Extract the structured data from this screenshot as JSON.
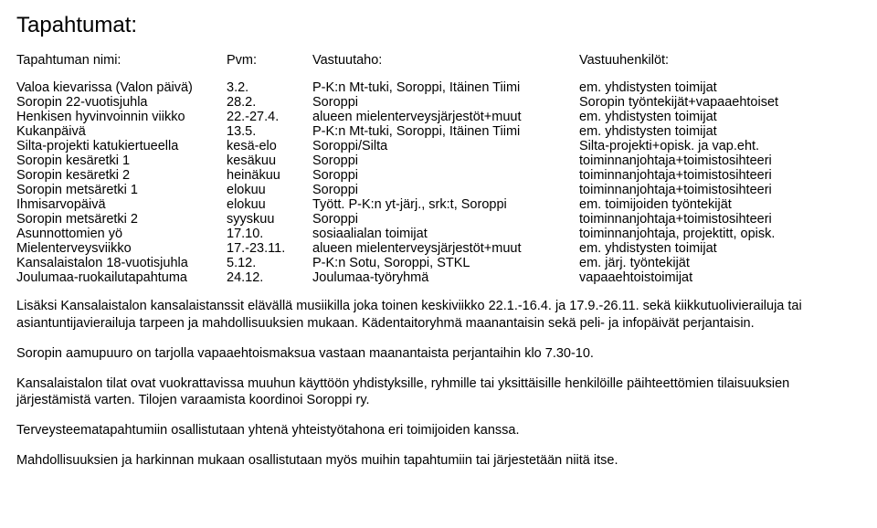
{
  "title": "Tapahtumat:",
  "headers": {
    "name": "Tapahtuman nimi:",
    "date": "Pvm:",
    "resp": "Vastuutaho:",
    "people": "Vastuuhenkilöt:"
  },
  "events": [
    {
      "name": "Valoa kievarissa (Valon päivä)",
      "date": "3.2.",
      "resp": "P-K:n Mt-tuki, Soroppi, Itäinen Tiimi",
      "people": "em. yhdistysten toimijat"
    },
    {
      "name": "Soropin 22-vuotisjuhla",
      "date": "28.2.",
      "resp": "Soroppi",
      "people": "Soropin työntekijät+vapaaehtoiset"
    },
    {
      "name": "Henkisen hyvinvoinnin viikko",
      "date": "22.-27.4.",
      "resp": "alueen mielenterveysjärjestöt+muut",
      "people": "em. yhdistysten toimijat"
    },
    {
      "name": "Kukanpäivä",
      "date": "13.5.",
      "resp": "P-K:n Mt-tuki, Soroppi, Itäinen Tiimi",
      "people": "em. yhdistysten toimijat"
    },
    {
      "name": "Silta-projekti katukiertueella",
      "date": "kesä-elo",
      "resp": "Soroppi/Silta",
      "people": "Silta-projekti+opisk. ja vap.eht."
    },
    {
      "name": "Soropin kesäretki 1",
      "date": "kesäkuu",
      "resp": "Soroppi",
      "people": "toiminnanjohtaja+toimistosihteeri"
    },
    {
      "name": "Soropin kesäretki 2",
      "date": "heinäkuu",
      "resp": "Soroppi",
      "people": "toiminnanjohtaja+toimistosihteeri"
    },
    {
      "name": "Soropin metsäretki 1",
      "date": "elokuu",
      "resp": "Soroppi",
      "people": "toiminnanjohtaja+toimistosihteeri"
    },
    {
      "name": "Ihmisarvopäivä",
      "date": "elokuu",
      "resp": "Tyött. P-K:n yt-järj., srk:t, Soroppi",
      "people": "em. toimijoiden työntekijät"
    },
    {
      "name": "Soropin metsäretki 2",
      "date": "syyskuu",
      "resp": "Soroppi",
      "people": "toiminnanjohtaja+toimistosihteeri"
    },
    {
      "name": "Asunnottomien yö",
      "date": "17.10.",
      "resp": "sosiaalialan toimijat",
      "people": "toiminnanjohtaja, projektitt, opisk."
    },
    {
      "name": "Mielenterveysviikko",
      "date": "17.-23.11.",
      "resp": "alueen mielenterveysjärjestöt+muut",
      "people": "em. yhdistysten toimijat"
    },
    {
      "name": "Kansalaistalon 18-vuotisjuhla",
      "date": "5.12.",
      "resp": "P-K:n Sotu, Soroppi, STKL",
      "people": "em. järj. työntekijät"
    },
    {
      "name": "Joulumaa-ruokailutapahtuma",
      "date": "24.12.",
      "resp": "Joulumaa-työryhmä",
      "people": "vapaaehtoistoimijat"
    }
  ],
  "paragraphs": [
    "Lisäksi Kansalaistalon kansalaistanssit elävällä musiikilla joka toinen keskiviikko 22.1.-16.4. ja 17.9.-26.11. sekä kiikkutuolivierailuja tai asiantuntijavierailuja tarpeen ja mahdollisuuksien mukaan. Kädentaitoryhmä maanantaisin sekä peli- ja infopäivät perjantaisin.",
    "Soropin aamupuuro on tarjolla vapaaehtoismaksua vastaan maanantaista perjantaihin klo 7.30-10.",
    "Kansalaistalon tilat ovat vuokrattavissa muuhun käyttöön yhdistyksille, ryhmille tai yksittäisille henkilöille päihteettömien tilaisuuksien järjestämistä varten. Tilojen varaamista koordinoi Soroppi ry.",
    "Terveysteematapahtumiin osallistutaan yhtenä yhteistyötahona eri toimijoiden kanssa.",
    "Mahdollisuuksien ja harkinnan mukaan osallistutaan myös muihin tapahtumiin tai järjestetään niitä itse."
  ]
}
